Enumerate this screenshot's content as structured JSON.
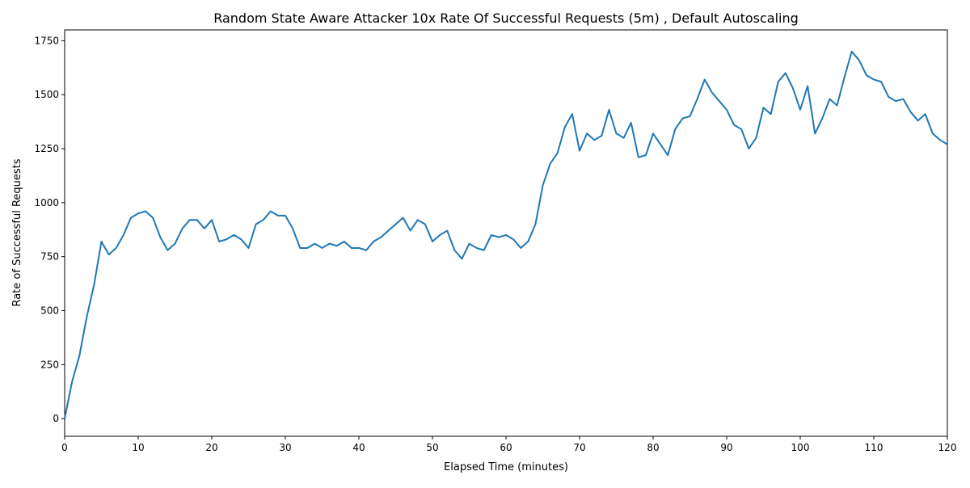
{
  "chart_data": {
    "type": "line",
    "title": "Random State Aware Attacker 10x Rate Of Successful Requests (5m) , Default Autoscaling",
    "x_label": "Elapsed Time (minutes)",
    "y_label": "Rate of Successful Requests",
    "x": [
      0,
      1,
      2,
      3,
      4,
      5,
      6,
      7,
      8,
      9,
      10,
      11,
      12,
      13,
      14,
      15,
      16,
      17,
      18,
      19,
      20,
      21,
      22,
      23,
      24,
      25,
      26,
      27,
      28,
      29,
      30,
      31,
      32,
      33,
      34,
      35,
      36,
      37,
      38,
      39,
      40,
      41,
      42,
      43,
      44,
      45,
      46,
      47,
      48,
      49,
      50,
      51,
      52,
      53,
      54,
      55,
      56,
      57,
      58,
      59,
      60,
      61,
      62,
      63,
      64,
      65,
      66,
      67,
      68,
      69,
      70,
      71,
      72,
      73,
      74,
      75,
      76,
      77,
      78,
      79,
      80,
      81,
      82,
      83,
      84,
      85,
      86,
      87,
      88,
      89,
      90,
      91,
      92,
      93,
      94,
      95,
      96,
      97,
      98,
      99,
      100,
      101,
      102,
      103,
      104,
      105,
      106,
      107,
      108,
      109,
      110,
      111,
      112,
      113,
      114,
      115,
      116,
      117,
      118,
      119,
      120
    ],
    "series": [
      {
        "name": "Rate of Successful Requests",
        "color": "#1f77b4",
        "values": [
          0,
          170,
          290,
          470,
          620,
          820,
          760,
          790,
          850,
          930,
          950,
          960,
          930,
          840,
          780,
          810,
          880,
          920,
          920,
          880,
          920,
          820,
          830,
          850,
          830,
          790,
          900,
          920,
          960,
          940,
          940,
          880,
          790,
          790,
          810,
          790,
          810,
          800,
          820,
          790,
          790,
          780,
          820,
          840,
          870,
          900,
          930,
          870,
          920,
          900,
          820,
          850,
          870,
          780,
          740,
          810,
          790,
          780,
          850,
          840,
          850,
          830,
          790,
          820,
          900,
          1080,
          1180,
          1230,
          1350,
          1410,
          1240,
          1320,
          1290,
          1310,
          1430,
          1320,
          1300,
          1370,
          1210,
          1220,
          1320,
          1270,
          1220,
          1340,
          1390,
          1400,
          1480,
          1570,
          1510,
          1470,
          1430,
          1360,
          1340,
          1250,
          1300,
          1440,
          1410,
          1560,
          1600,
          1530,
          1430,
          1540,
          1320,
          1390,
          1480,
          1450,
          1580,
          1700,
          1660,
          1590,
          1570,
          1560,
          1490,
          1470,
          1480,
          1420,
          1380,
          1410,
          1320,
          1290,
          1270
        ]
      }
    ],
    "xlim": [
      0,
      120
    ],
    "xticks": [
      0,
      10,
      20,
      30,
      40,
      50,
      60,
      70,
      80,
      90,
      100,
      110,
      120
    ],
    "ylim": [
      -82,
      1800
    ],
    "yticks": [
      0,
      250,
      500,
      750,
      1000,
      1250,
      1500,
      1750
    ],
    "grid": false
  }
}
